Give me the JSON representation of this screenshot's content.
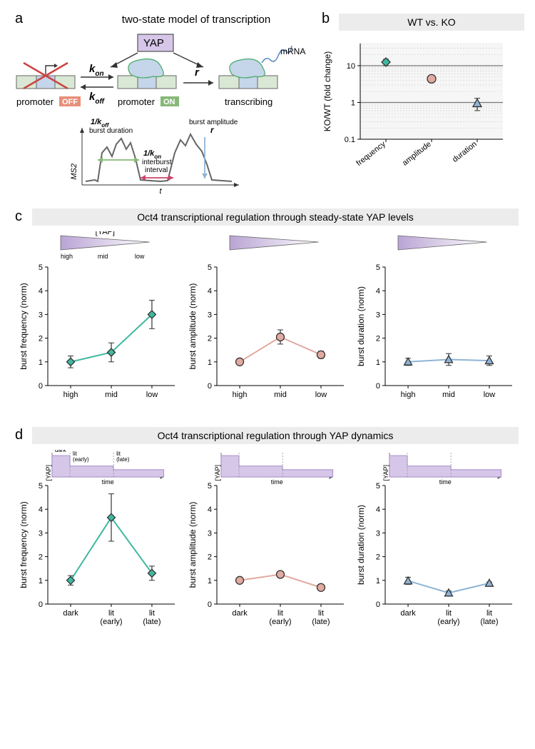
{
  "panel_a": {
    "label": "a",
    "title": "two-state model of transcription",
    "yap_box": "YAP",
    "k_on": "k",
    "k_on_sub": "on",
    "k_off": "k",
    "k_off_sub": "off",
    "r": "r",
    "promoter_off_prefix": "promoter",
    "promoter_off_tag": "OFF",
    "promoter_on_prefix": "promoter",
    "promoter_on_tag": "ON",
    "transcribing": "transcribing",
    "mrna": "mRNA",
    "burst_duration_sup": "1/k",
    "burst_duration_sub": "off",
    "burst_duration": "burst duration",
    "interburst_sup": "1/k",
    "interburst_sub": "on",
    "interburst": "interburst",
    "interburst2": "interval",
    "burst_amp": "burst amplitude",
    "burst_amp_r": "r",
    "ms2": "MS2",
    "t": "t"
  },
  "panel_b": {
    "label": "b",
    "title": "WT vs. KO",
    "ylabel": "KO/WT (fold change)",
    "yticks": [
      "0.1",
      "1",
      "10"
    ],
    "xticks": [
      "frequency",
      "amplitude",
      "duration"
    ],
    "points": [
      {
        "x": 0,
        "y": 12.5,
        "err": 2.5,
        "shape": "diamond",
        "color": "#3fb8a0"
      },
      {
        "x": 1,
        "y": 4.4,
        "err": 0.6,
        "shape": "circle",
        "color": "#e2aaa0"
      },
      {
        "x": 2,
        "y": 0.95,
        "err": 0.35,
        "shape": "triangle",
        "color": "#8fb4d6"
      }
    ]
  },
  "panel_c": {
    "label": "c",
    "title": "Oct4 transcriptional regulation through steady-state YAP levels",
    "yap_concentration": "[YAP]",
    "xticks": [
      "high",
      "mid",
      "low"
    ],
    "wedge_labels": [
      "high",
      "mid",
      "low"
    ],
    "ylim": [
      0,
      5
    ],
    "charts": [
      {
        "ylabel": "burst frequency (norm)",
        "color": "#3fb8a0",
        "shape": "diamond",
        "points": [
          {
            "x": 0,
            "y": 1.0,
            "err": 0.25
          },
          {
            "x": 1,
            "y": 1.4,
            "err": 0.4
          },
          {
            "x": 2,
            "y": 3.0,
            "err": 0.6
          }
        ]
      },
      {
        "ylabel": "burst amplitude (norm)",
        "color": "#e2aaa0",
        "shape": "circle",
        "points": [
          {
            "x": 0,
            "y": 1.0,
            "err": 0.05
          },
          {
            "x": 1,
            "y": 2.05,
            "err": 0.3
          },
          {
            "x": 2,
            "y": 1.3,
            "err": 0.15
          }
        ]
      },
      {
        "ylabel": "burst duration (norm)",
        "color": "#8fb4d6",
        "shape": "triangle",
        "points": [
          {
            "x": 0,
            "y": 1.0,
            "err": 0.15
          },
          {
            "x": 1,
            "y": 1.1,
            "err": 0.25
          },
          {
            "x": 2,
            "y": 1.05,
            "err": 0.2
          }
        ]
      }
    ]
  },
  "panel_d": {
    "label": "d",
    "title": "Oct4 transcriptional regulation through YAP dynamics",
    "yap_concentration": "[YAP]",
    "timeline_labels": [
      "dark",
      "lit (early)",
      "lit (late)"
    ],
    "timeline_xaxis": "time",
    "xticks": [
      "dark",
      "lit\n(early)",
      "lit\n(late)"
    ],
    "ylim": [
      0,
      5
    ],
    "charts": [
      {
        "ylabel": "burst frequency (norm)",
        "color": "#3fb8a0",
        "shape": "diamond",
        "points": [
          {
            "x": 0,
            "y": 1.0,
            "err": 0.2
          },
          {
            "x": 1,
            "y": 3.65,
            "err": 1.0
          },
          {
            "x": 2,
            "y": 1.3,
            "err": 0.3
          }
        ]
      },
      {
        "ylabel": "burst amplitude (norm)",
        "color": "#e2aaa0",
        "shape": "circle",
        "points": [
          {
            "x": 0,
            "y": 1.0,
            "err": 0.05
          },
          {
            "x": 1,
            "y": 1.25,
            "err": 0.12
          },
          {
            "x": 2,
            "y": 0.7,
            "err": 0.08
          }
        ]
      },
      {
        "ylabel": "burst duration (norm)",
        "color": "#8fb4d6",
        "shape": "triangle",
        "points": [
          {
            "x": 0,
            "y": 0.98,
            "err": 0.15
          },
          {
            "x": 1,
            "y": 0.47,
            "err": 0.08
          },
          {
            "x": 2,
            "y": 0.88,
            "err": 0.05
          }
        ]
      }
    ]
  },
  "style": {
    "background": "#ffffff",
    "band_bg": "#ececec",
    "promoter_blue": "#c5d5ea",
    "promoter_green": "#d9e8d4",
    "off_tag": "#e78f79",
    "on_tag": "#87b877",
    "yap_purple": "#d6c6e8",
    "dark_gray": "#666666",
    "mrna_blue": "#5b8fc5",
    "freq_color": "#3fb8a0",
    "amp_color": "#e2aaa0",
    "dur_color": "#8fb4d6"
  }
}
